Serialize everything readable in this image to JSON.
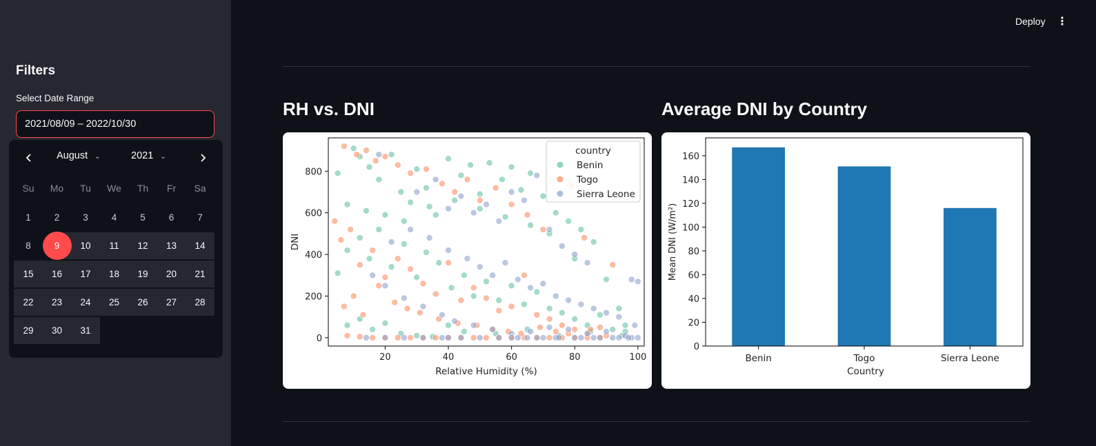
{
  "header": {
    "deploy_label": "Deploy",
    "menu_icon": "kebab-menu-icon"
  },
  "sidebar": {
    "title": "Filters",
    "date_range_label": "Select Date Range",
    "date_range_value": "2021/08/09 – 2022/10/30",
    "calendar": {
      "month": "August",
      "year": "2021",
      "weekdays": [
        "Su",
        "Mo",
        "Tu",
        "We",
        "Th",
        "Fr",
        "Sa"
      ],
      "days": [
        "1",
        "2",
        "3",
        "4",
        "5",
        "6",
        "7",
        "8",
        "9",
        "10",
        "11",
        "12",
        "13",
        "14",
        "15",
        "16",
        "17",
        "18",
        "19",
        "20",
        "21",
        "22",
        "23",
        "24",
        "25",
        "26",
        "27",
        "28",
        "29",
        "30",
        "31"
      ],
      "first_weekday_index": 0,
      "selected_day": "9",
      "accent": "#ff4b4b"
    }
  },
  "main": {
    "scatter_title": "RH vs. DNI",
    "bar_title": "Average DNI by Country"
  },
  "chart_data": [
    {
      "type": "scatter",
      "xlabel": "Relative Humidity (%)",
      "ylabel": "DNI",
      "xlim": [
        2,
        102
      ],
      "ylim": [
        -40,
        960
      ],
      "xticks": [
        20,
        40,
        60,
        80,
        100
      ],
      "yticks": [
        0,
        200,
        400,
        600,
        800
      ],
      "legend": {
        "title": "country",
        "position": "top-right"
      },
      "series": [
        {
          "name": "Benin",
          "color": "#66c2a5",
          "points": [
            [
              5,
              790
            ],
            [
              8,
              640
            ],
            [
              10,
              910
            ],
            [
              12,
              870
            ],
            [
              15,
              820
            ],
            [
              18,
              760
            ],
            [
              22,
              880
            ],
            [
              25,
              700
            ],
            [
              28,
              650
            ],
            [
              30,
              810
            ],
            [
              33,
              720
            ],
            [
              36,
              590
            ],
            [
              40,
              860
            ],
            [
              44,
              780
            ],
            [
              47,
              830
            ],
            [
              50,
              690
            ],
            [
              53,
              840
            ],
            [
              57,
              760
            ],
            [
              60,
              820
            ],
            [
              63,
              710
            ],
            [
              66,
              790
            ],
            [
              70,
              680
            ],
            [
              74,
              600
            ],
            [
              78,
              560
            ],
            [
              82,
              520
            ],
            [
              86,
              460
            ],
            [
              5,
              310
            ],
            [
              8,
              420
            ],
            [
              12,
              480
            ],
            [
              15,
              380
            ],
            [
              18,
              520
            ],
            [
              22,
              340
            ],
            [
              26,
              450
            ],
            [
              30,
              290
            ],
            [
              33,
              410
            ],
            [
              37,
              360
            ],
            [
              41,
              240
            ],
            [
              45,
              300
            ],
            [
              48,
              200
            ],
            [
              52,
              270
            ],
            [
              56,
              180
            ],
            [
              60,
              250
            ],
            [
              64,
              160
            ],
            [
              68,
              220
            ],
            [
              72,
              140
            ],
            [
              76,
              120
            ],
            [
              80,
              90
            ],
            [
              84,
              60
            ],
            [
              88,
              110
            ],
            [
              92,
              40
            ],
            [
              96,
              30
            ],
            [
              8,
              60
            ],
            [
              12,
              90
            ],
            [
              16,
              40
            ],
            [
              20,
              70
            ],
            [
              25,
              20
            ],
            [
              30,
              10
            ],
            [
              35,
              5
            ],
            [
              40,
              60
            ],
            [
              45,
              30
            ],
            [
              55,
              20
            ],
            [
              65,
              40
            ],
            [
              75,
              10
            ],
            [
              85,
              30
            ],
            [
              95,
              10
            ],
            [
              14,
              610
            ],
            [
              20,
              590
            ],
            [
              26,
              560
            ],
            [
              34,
              630
            ],
            [
              42,
              660
            ],
            [
              50,
              620
            ],
            [
              58,
              580
            ],
            [
              66,
              540
            ],
            [
              72,
              500
            ],
            [
              80,
              380
            ],
            [
              90,
              280
            ],
            [
              94,
              140
            ],
            [
              96,
              60
            ]
          ]
        },
        {
          "name": "Togo",
          "color": "#fc8d62",
          "points": [
            [
              7,
              920
            ],
            [
              11,
              880
            ],
            [
              14,
              900
            ],
            [
              17,
              850
            ],
            [
              20,
              870
            ],
            [
              24,
              830
            ],
            [
              28,
              790
            ],
            [
              33,
              810
            ],
            [
              38,
              740
            ],
            [
              42,
              700
            ],
            [
              46,
              760
            ],
            [
              50,
              660
            ],
            [
              55,
              720
            ],
            [
              60,
              640
            ],
            [
              65,
              590
            ],
            [
              70,
              520
            ],
            [
              75,
              760
            ],
            [
              79,
              730
            ],
            [
              83,
              480
            ],
            [
              4,
              560
            ],
            [
              6,
              470
            ],
            [
              9,
              520
            ],
            [
              12,
              350
            ],
            [
              16,
              420
            ],
            [
              20,
              290
            ],
            [
              24,
              380
            ],
            [
              28,
              330
            ],
            [
              32,
              260
            ],
            [
              36,
              210
            ],
            [
              40,
              360
            ],
            [
              44,
              180
            ],
            [
              48,
              240
            ],
            [
              52,
              190
            ],
            [
              56,
              130
            ],
            [
              60,
              150
            ],
            [
              64,
              300
            ],
            [
              68,
              110
            ],
            [
              72,
              90
            ],
            [
              76,
              60
            ],
            [
              80,
              40
            ],
            [
              84,
              20
            ],
            [
              88,
              50
            ],
            [
              92,
              350
            ],
            [
              8,
              10
            ],
            [
              12,
              5
            ],
            [
              16,
              0
            ],
            [
              20,
              0
            ],
            [
              24,
              0
            ],
            [
              28,
              0
            ],
            [
              32,
              0
            ],
            [
              36,
              0
            ],
            [
              40,
              0
            ],
            [
              44,
              0
            ],
            [
              48,
              0
            ],
            [
              52,
              0
            ],
            [
              56,
              0
            ],
            [
              60,
              0
            ],
            [
              64,
              0
            ],
            [
              68,
              0
            ],
            [
              72,
              0
            ],
            [
              76,
              0
            ],
            [
              80,
              0
            ],
            [
              84,
              0
            ],
            [
              88,
              0
            ],
            [
              7,
              150
            ],
            [
              10,
              200
            ],
            [
              13,
              110
            ],
            [
              18,
              250
            ],
            [
              23,
              170
            ],
            [
              27,
              140
            ],
            [
              31,
              120
            ],
            [
              37,
              90
            ],
            [
              43,
              70
            ],
            [
              49,
              60
            ],
            [
              54,
              40
            ],
            [
              59,
              30
            ],
            [
              63,
              20
            ],
            [
              69,
              50
            ],
            [
              74,
              30
            ],
            [
              78,
              20
            ],
            [
              85,
              40
            ],
            [
              90,
              10
            ]
          ]
        },
        {
          "name": "Sierra Leone",
          "color": "#8da0cb",
          "points": [
            [
              18,
              880
            ],
            [
              30,
              700
            ],
            [
              36,
              760
            ],
            [
              40,
              620
            ],
            [
              44,
              680
            ],
            [
              48,
              600
            ],
            [
              52,
              640
            ],
            [
              56,
              560
            ],
            [
              60,
              700
            ],
            [
              64,
              660
            ],
            [
              68,
              780
            ],
            [
              72,
              520
            ],
            [
              76,
              440
            ],
            [
              80,
              400
            ],
            [
              84,
              360
            ],
            [
              22,
              460
            ],
            [
              28,
              520
            ],
            [
              34,
              480
            ],
            [
              40,
              420
            ],
            [
              46,
              380
            ],
            [
              50,
              340
            ],
            [
              54,
              300
            ],
            [
              58,
              360
            ],
            [
              62,
              280
            ],
            [
              66,
              240
            ],
            [
              70,
              260
            ],
            [
              74,
              200
            ],
            [
              78,
              180
            ],
            [
              82,
              160
            ],
            [
              86,
              140
            ],
            [
              90,
              120
            ],
            [
              94,
              100
            ],
            [
              98,
              280
            ],
            [
              100,
              270
            ],
            [
              16,
              300
            ],
            [
              20,
              250
            ],
            [
              26,
              190
            ],
            [
              32,
              150
            ],
            [
              38,
              110
            ],
            [
              42,
              80
            ],
            [
              48,
              60
            ],
            [
              54,
              40
            ],
            [
              60,
              20
            ],
            [
              66,
              30
            ],
            [
              72,
              50
            ],
            [
              78,
              40
            ],
            [
              84,
              20
            ],
            [
              90,
              30
            ],
            [
              96,
              10
            ],
            [
              20,
              0
            ],
            [
              26,
              0
            ],
            [
              32,
              0
            ],
            [
              38,
              0
            ],
            [
              44,
              0
            ],
            [
              50,
              0
            ],
            [
              56,
              0
            ],
            [
              62,
              0
            ],
            [
              68,
              0
            ],
            [
              74,
              0
            ],
            [
              80,
              0
            ],
            [
              86,
              0
            ],
            [
              92,
              0
            ],
            [
              98,
              0
            ],
            [
              100,
              0
            ],
            [
              14,
              0
            ],
            [
              40,
              0
            ],
            [
              60,
              0
            ],
            [
              65,
              0
            ],
            [
              70,
              0
            ],
            [
              75,
              0
            ],
            [
              82,
              0
            ],
            [
              88,
              0
            ],
            [
              94,
              0
            ],
            [
              97,
              0
            ],
            [
              99,
              60
            ]
          ]
        }
      ]
    },
    {
      "type": "bar",
      "categories": [
        "Benin",
        "Togo",
        "Sierra Leone"
      ],
      "values": [
        167,
        151,
        116
      ],
      "xlabel": "Country",
      "ylabel": "Mean DNI (W/m²)",
      "ylim": [
        0,
        175
      ],
      "yticks": [
        0,
        20,
        40,
        60,
        80,
        100,
        120,
        140,
        160
      ],
      "color": "#1f77b4"
    }
  ]
}
